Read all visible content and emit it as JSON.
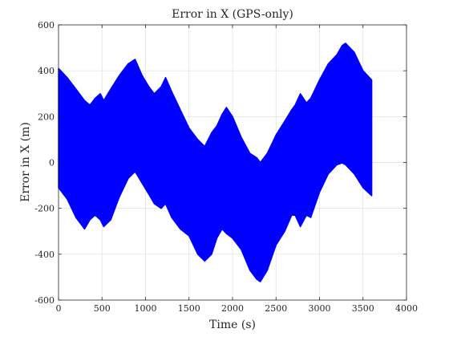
{
  "chart_data": {
    "type": "area",
    "title": "Error in X (GPS-only)",
    "xlabel": "Time (s)",
    "ylabel": "Error in X (m)",
    "xlim": [
      0,
      4000
    ],
    "ylim": [
      -600,
      600
    ],
    "xticks": [
      0,
      500,
      1000,
      1500,
      2000,
      2500,
      3000,
      3500,
      4000
    ],
    "yticks": [
      -600,
      -400,
      -200,
      0,
      200,
      400,
      600
    ],
    "grid": true,
    "legend": "none",
    "fill_color": "#0000FF",
    "series": [
      {
        "x": [
          0,
          100,
          200,
          300,
          360,
          420,
          480,
          520,
          600,
          700,
          800,
          880,
          960,
          1040,
          1100,
          1180,
          1230,
          1300,
          1400,
          1500,
          1600,
          1680,
          1760,
          1820,
          1880,
          1930,
          2000,
          2100,
          2200,
          2280,
          2320,
          2400,
          2500,
          2600,
          2680,
          2720,
          2780,
          2850,
          2900,
          3000,
          3100,
          3200,
          3260,
          3300,
          3400,
          3500,
          3600
        ],
        "upper": [
          410,
          370,
          320,
          270,
          250,
          280,
          300,
          270,
          320,
          380,
          430,
          450,
          380,
          330,
          300,
          330,
          370,
          310,
          230,
          150,
          100,
          70,
          130,
          160,
          210,
          240,
          200,
          110,
          40,
          20,
          0,
          40,
          120,
          180,
          230,
          250,
          300,
          260,
          280,
          360,
          430,
          470,
          510,
          520,
          480,
          400,
          360
        ],
        "lower": [
          -110,
          -160,
          -240,
          -290,
          -250,
          -230,
          -250,
          -280,
          -250,
          -150,
          -70,
          -40,
          -90,
          -140,
          -180,
          -200,
          -180,
          -240,
          -290,
          -320,
          -400,
          -430,
          -400,
          -330,
          -290,
          -310,
          -330,
          -380,
          -470,
          -510,
          -520,
          -470,
          -360,
          -300,
          -230,
          -230,
          -280,
          -230,
          -240,
          -130,
          -50,
          -10,
          -2,
          -10,
          -50,
          -110,
          -145
        ]
      }
    ]
  }
}
